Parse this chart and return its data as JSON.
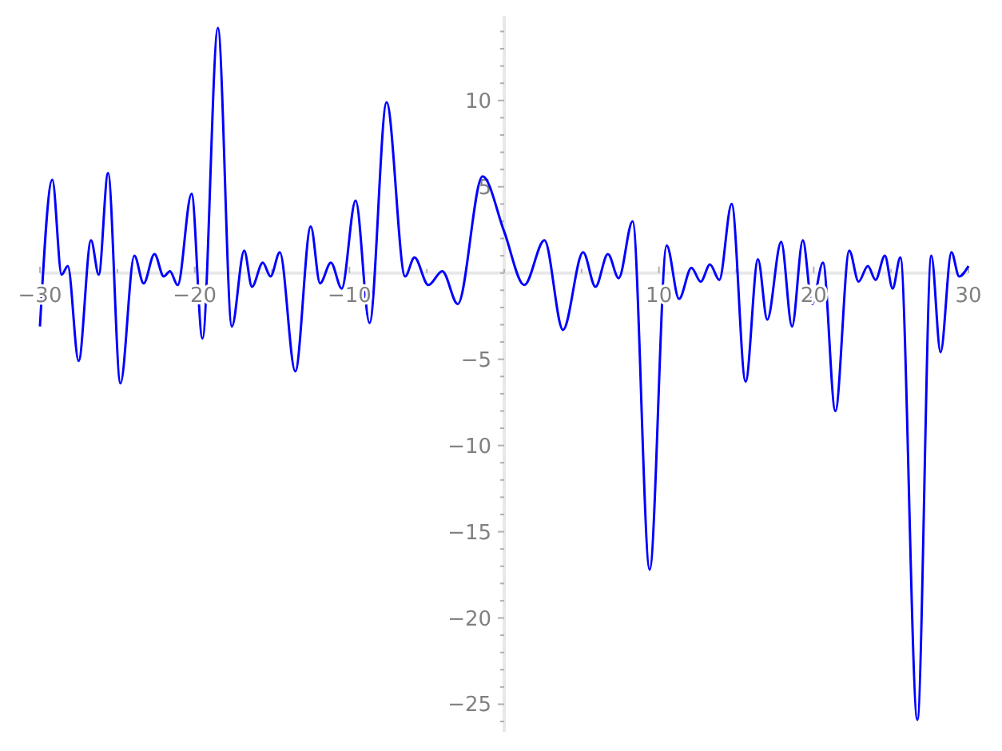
{
  "chart_data": {
    "type": "line",
    "x": [
      -30,
      -29.2,
      -28.6,
      -28.2,
      -27.5,
      -26.7,
      -26.2,
      -25.6,
      -24.8,
      -23.9,
      -23.3,
      -22.6,
      -22.0,
      -21.6,
      -21.1,
      -20.2,
      -19.5,
      -18.5,
      -17.6,
      -16.8,
      -16.3,
      -15.6,
      -15.1,
      -14.5,
      -13.5,
      -12.5,
      -11.9,
      -11.2,
      -10.5,
      -9.6,
      -8.7,
      -7.6,
      -6.4,
      -5.8,
      -4.9,
      -4.0,
      -3.0,
      -1.4,
      0,
      1.3,
      2.6,
      3.8,
      5.1,
      5.9,
      6.7,
      7.4,
      8.3,
      9.4,
      10.5,
      11.3,
      12.1,
      12.7,
      13.3,
      13.9,
      14.7,
      15.6,
      16.4,
      17.0,
      17.9,
      18.6,
      19.3,
      19.9,
      20.6,
      21.4,
      22.3,
      22.9,
      23.5,
      24.0,
      24.6,
      25.1,
      25.6,
      26.7,
      27.6,
      28.2,
      28.9,
      29.4,
      30
    ],
    "series": [
      {
        "color": "#0000ff",
        "values": [
          -3.1,
          5.4,
          -0.1,
          0.4,
          -5.1,
          1.9,
          -0.1,
          5.8,
          -6.4,
          1.0,
          -0.6,
          1.1,
          -0.2,
          0.1,
          -0.7,
          4.6,
          -3.8,
          14.2,
          -3.1,
          1.3,
          -0.8,
          0.6,
          -0.2,
          1.2,
          -5.7,
          2.7,
          -0.6,
          0.6,
          -0.9,
          4.2,
          -2.9,
          9.9,
          -0.2,
          0.9,
          -0.7,
          0.1,
          -1.8,
          5.6,
          2.4,
          -0.7,
          1.9,
          -3.3,
          1.2,
          -0.8,
          1.1,
          -0.3,
          3.0,
          -17.2,
          1.6,
          -1.5,
          0.3,
          -0.5,
          0.5,
          -0.4,
          4.0,
          -6.3,
          0.8,
          -2.7,
          1.8,
          -3.1,
          1.9,
          -1.8,
          0.6,
          -8.0,
          1.3,
          -0.5,
          0.4,
          -0.4,
          1.0,
          -0.9,
          0.9,
          -25.9,
          1.0,
          -4.6,
          1.2,
          -0.2,
          0.4
        ]
      }
    ],
    "xlim": [
      -30,
      30
    ],
    "ylim": [
      -26.6,
      14.9
    ],
    "xticks": [
      -30,
      {
        "value": -25,
        "label": null
      },
      -20,
      {
        "value": -15,
        "label": null
      },
      -10,
      {
        "value": -5,
        "label": null
      },
      {
        "value": 0,
        "label": null
      },
      {
        "value": 5,
        "label": null
      },
      10,
      {
        "value": 15,
        "label": null
      },
      20,
      {
        "value": 25,
        "label": null
      },
      30
    ],
    "yticks": [
      {
        "value": -26,
        "label": null
      },
      -25,
      {
        "value": -24,
        "label": null
      },
      {
        "value": -23,
        "label": null
      },
      {
        "value": -22,
        "label": null
      },
      {
        "value": -21,
        "label": null
      },
      -20,
      {
        "value": -19,
        "label": null
      },
      {
        "value": -18,
        "label": null
      },
      {
        "value": -17,
        "label": null
      },
      {
        "value": -16,
        "label": null
      },
      -15,
      {
        "value": -14,
        "label": null
      },
      {
        "value": -13,
        "label": null
      },
      {
        "value": -12,
        "label": null
      },
      {
        "value": -11,
        "label": null
      },
      -10,
      {
        "value": -9,
        "label": null
      },
      {
        "value": -8,
        "label": null
      },
      {
        "value": -7,
        "label": null
      },
      {
        "value": -6,
        "label": null
      },
      -5,
      {
        "value": -4,
        "label": null
      },
      {
        "value": -3,
        "label": null
      },
      {
        "value": -2,
        "label": null
      },
      {
        "value": -1,
        "label": null
      },
      {
        "value": 0,
        "label": null
      },
      {
        "value": 1,
        "label": null
      },
      {
        "value": 2,
        "label": null
      },
      {
        "value": 3,
        "label": null
      },
      {
        "value": 4,
        "label": null
      },
      5,
      {
        "value": 6,
        "label": null
      },
      {
        "value": 7,
        "label": null
      },
      {
        "value": 8,
        "label": null
      },
      {
        "value": 9,
        "label": null
      },
      10,
      {
        "value": 11,
        "label": null
      },
      {
        "value": 12,
        "label": null
      },
      {
        "value": 13,
        "label": null
      },
      {
        "value": 14,
        "label": null
      }
    ],
    "grid": false,
    "line_style": "solid",
    "marker": "none"
  }
}
